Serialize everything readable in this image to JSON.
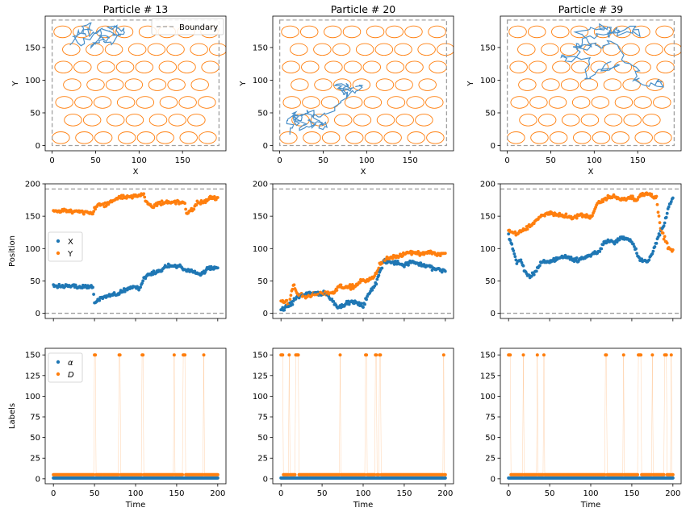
{
  "colors": {
    "blue": "#1f77b4",
    "orange": "#ff7f0e",
    "traj": "#4a90c9",
    "boundary": "#a0a0a0",
    "obstacle": "#ff7f0e"
  },
  "chart_data": [
    {
      "panel": "r0c0",
      "type": "scatter",
      "title": "Particle # 13",
      "xlabel": "X",
      "ylabel": "Y",
      "xlim": [
        -8,
        200
      ],
      "ylim": [
        -8,
        198
      ],
      "xticks": [
        0,
        50,
        100,
        150
      ],
      "yticks": [
        0,
        50,
        100,
        150
      ],
      "boundary": 192,
      "legend": {
        "label": "Boundary",
        "loc": "upper right"
      },
      "trajectory": [
        [
          20,
          150
        ],
        [
          30,
          175
        ],
        [
          40,
          168
        ],
        [
          35,
          182
        ],
        [
          45,
          185
        ],
        [
          42,
          170
        ],
        [
          55,
          175
        ],
        [
          60,
          162
        ],
        [
          50,
          158
        ],
        [
          45,
          150
        ],
        [
          55,
          165
        ],
        [
          65,
          170
        ],
        [
          60,
          155
        ],
        [
          70,
          160
        ],
        [
          75,
          178
        ],
        [
          65,
          183
        ],
        [
          80,
          180
        ],
        [
          85,
          175
        ],
        [
          75,
          168
        ],
        [
          70,
          172
        ],
        [
          55,
          180
        ],
        [
          40,
          160
        ],
        [
          30,
          155
        ],
        [
          25,
          165
        ],
        [
          35,
          170
        ],
        [
          48,
          178
        ]
      ]
    },
    {
      "panel": "r0c1",
      "type": "scatter",
      "title": "Particle # 20",
      "xlabel": "X",
      "ylabel": "Y",
      "xlim": [
        -8,
        200
      ],
      "ylim": [
        -8,
        198
      ],
      "xticks": [
        0,
        50,
        100,
        150
      ],
      "yticks": [
        0,
        50,
        100,
        150
      ],
      "boundary": 192,
      "trajectory": [
        [
          10,
          15
        ],
        [
          15,
          30
        ],
        [
          5,
          40
        ],
        [
          20,
          45
        ],
        [
          12,
          50
        ],
        [
          30,
          35
        ],
        [
          25,
          25
        ],
        [
          40,
          30
        ],
        [
          35,
          40
        ],
        [
          50,
          35
        ],
        [
          45,
          28
        ],
        [
          55,
          32
        ],
        [
          40,
          45
        ],
        [
          30,
          55
        ],
        [
          25,
          42
        ],
        [
          20,
          30
        ],
        [
          15,
          45
        ],
        [
          35,
          48
        ],
        [
          45,
          42
        ],
        [
          60,
          55
        ],
        [
          70,
          65
        ],
        [
          75,
          80
        ],
        [
          65,
          92
        ],
        [
          80,
          95
        ],
        [
          75,
          85
        ],
        [
          85,
          88
        ],
        [
          70,
          85
        ],
        [
          80,
          78
        ],
        [
          90,
          85
        ],
        [
          95,
          90
        ],
        [
          85,
          92
        ]
      ]
    },
    {
      "panel": "r0c2",
      "type": "scatter",
      "title": "Particle # 39",
      "xlabel": "X",
      "ylabel": "Y",
      "xlim": [
        -8,
        200
      ],
      "ylim": [
        -8,
        198
      ],
      "xticks": [
        0,
        50,
        100,
        150
      ],
      "yticks": [
        0,
        50,
        100,
        150
      ],
      "boundary": 192,
      "trajectory": [
        [
          120,
          130
        ],
        [
          110,
          115
        ],
        [
          130,
          125
        ],
        [
          100,
          110
        ],
        [
          90,
          100
        ],
        [
          95,
          130
        ],
        [
          75,
          135
        ],
        [
          60,
          140
        ],
        [
          70,
          130
        ],
        [
          85,
          140
        ],
        [
          80,
          155
        ],
        [
          95,
          150
        ],
        [
          90,
          165
        ],
        [
          80,
          175
        ],
        [
          100,
          180
        ],
        [
          110,
          175
        ],
        [
          105,
          185
        ],
        [
          120,
          178
        ],
        [
          115,
          168
        ],
        [
          130,
          180
        ],
        [
          125,
          170
        ],
        [
          140,
          175
        ],
        [
          150,
          170
        ],
        [
          145,
          182
        ],
        [
          110,
          170
        ],
        [
          95,
          165
        ],
        [
          80,
          150
        ],
        [
          90,
          145
        ],
        [
          100,
          160
        ],
        [
          110,
          150
        ],
        [
          120,
          160
        ],
        [
          135,
          130
        ],
        [
          150,
          120
        ],
        [
          145,
          100
        ],
        [
          160,
          95
        ],
        [
          175,
          100
        ],
        [
          180,
          90
        ],
        [
          165,
          92
        ]
      ]
    },
    {
      "panel": "r1c0",
      "type": "scatter",
      "ylabel": "Position",
      "xlim": [
        -10,
        210
      ],
      "ylim": [
        -8,
        200
      ],
      "yticks": [
        0,
        50,
        100,
        150,
        200
      ],
      "boundary": 192,
      "legend": {
        "loc": "center left",
        "labels": [
          "X",
          "Y"
        ]
      },
      "x_knots": [
        [
          0,
          42
        ],
        [
          20,
          42
        ],
        [
          40,
          40
        ],
        [
          48,
          42
        ],
        [
          50,
          15
        ],
        [
          60,
          25
        ],
        [
          80,
          30
        ],
        [
          90,
          38
        ],
        [
          100,
          40
        ],
        [
          105,
          38
        ],
        [
          110,
          55
        ],
        [
          120,
          62
        ],
        [
          130,
          65
        ],
        [
          140,
          75
        ],
        [
          150,
          72
        ],
        [
          155,
          72
        ],
        [
          160,
          68
        ],
        [
          170,
          65
        ],
        [
          180,
          60
        ],
        [
          190,
          72
        ],
        [
          200,
          68
        ]
      ],
      "y_knots": [
        [
          0,
          158
        ],
        [
          20,
          158
        ],
        [
          40,
          155
        ],
        [
          48,
          155
        ],
        [
          50,
          160
        ],
        [
          55,
          170
        ],
        [
          60,
          165
        ],
        [
          70,
          172
        ],
        [
          80,
          180
        ],
        [
          90,
          178
        ],
        [
          100,
          182
        ],
        [
          110,
          185
        ],
        [
          112,
          172
        ],
        [
          120,
          165
        ],
        [
          130,
          170
        ],
        [
          140,
          172
        ],
        [
          150,
          172
        ],
        [
          160,
          170
        ],
        [
          162,
          155
        ],
        [
          170,
          160
        ],
        [
          175,
          170
        ],
        [
          185,
          172
        ],
        [
          190,
          178
        ],
        [
          200,
          178
        ]
      ]
    },
    {
      "panel": "r1c1",
      "type": "scatter",
      "xlim": [
        -10,
        210
      ],
      "ylim": [
        -8,
        200
      ],
      "yticks": [
        0,
        50,
        100,
        150,
        200
      ],
      "boundary": 192,
      "x_knots": [
        [
          0,
          5
        ],
        [
          10,
          12
        ],
        [
          20,
          25
        ],
        [
          30,
          30
        ],
        [
          40,
          32
        ],
        [
          55,
          30
        ],
        [
          60,
          22
        ],
        [
          70,
          10
        ],
        [
          85,
          18
        ],
        [
          100,
          12
        ],
        [
          105,
          25
        ],
        [
          115,
          45
        ],
        [
          125,
          80
        ],
        [
          140,
          78
        ],
        [
          150,
          75
        ],
        [
          160,
          80
        ],
        [
          170,
          75
        ],
        [
          180,
          72
        ],
        [
          190,
          68
        ],
        [
          200,
          66
        ]
      ],
      "y_knots": [
        [
          0,
          20
        ],
        [
          10,
          15
        ],
        [
          15,
          45
        ],
        [
          20,
          30
        ],
        [
          30,
          25
        ],
        [
          40,
          28
        ],
        [
          55,
          32
        ],
        [
          65,
          32
        ],
        [
          70,
          42
        ],
        [
          80,
          40
        ],
        [
          90,
          42
        ],
        [
          100,
          52
        ],
        [
          105,
          50
        ],
        [
          115,
          60
        ],
        [
          120,
          75
        ],
        [
          130,
          85
        ],
        [
          140,
          88
        ],
        [
          150,
          92
        ],
        [
          160,
          95
        ],
        [
          170,
          92
        ],
        [
          180,
          95
        ],
        [
          190,
          90
        ],
        [
          200,
          92
        ]
      ]
    },
    {
      "panel": "r1c2",
      "type": "scatter",
      "xlim": [
        -10,
        210
      ],
      "ylim": [
        -8,
        200
      ],
      "yticks": [
        0,
        50,
        100,
        150,
        200
      ],
      "boundary": 192,
      "x_knots": [
        [
          0,
          120
        ],
        [
          5,
          100
        ],
        [
          10,
          80
        ],
        [
          15,
          82
        ],
        [
          20,
          65
        ],
        [
          25,
          55
        ],
        [
          30,
          60
        ],
        [
          40,
          78
        ],
        [
          50,
          80
        ],
        [
          60,
          85
        ],
        [
          70,
          88
        ],
        [
          80,
          82
        ],
        [
          90,
          85
        ],
        [
          100,
          90
        ],
        [
          110,
          95
        ],
        [
          115,
          108
        ],
        [
          120,
          112
        ],
        [
          130,
          110
        ],
        [
          140,
          118
        ],
        [
          150,
          112
        ],
        [
          160,
          82
        ],
        [
          170,
          80
        ],
        [
          180,
          110
        ],
        [
          190,
          140
        ],
        [
          195,
          165
        ],
        [
          200,
          178
        ]
      ],
      "y_knots": [
        [
          0,
          130
        ],
        [
          5,
          125
        ],
        [
          10,
          122
        ],
        [
          20,
          130
        ],
        [
          30,
          140
        ],
        [
          40,
          150
        ],
        [
          50,
          155
        ],
        [
          60,
          152
        ],
        [
          70,
          150
        ],
        [
          80,
          148
        ],
        [
          90,
          152
        ],
        [
          100,
          148
        ],
        [
          105,
          160
        ],
        [
          110,
          172
        ],
        [
          120,
          178
        ],
        [
          130,
          180
        ],
        [
          140,
          175
        ],
        [
          150,
          180
        ],
        [
          155,
          175
        ],
        [
          160,
          182
        ],
        [
          170,
          185
        ],
        [
          180,
          178
        ],
        [
          185,
          130
        ],
        [
          190,
          115
        ],
        [
          195,
          100
        ],
        [
          200,
          95
        ]
      ]
    },
    {
      "panel": "r2c0",
      "type": "scatter",
      "ylabel": "Labels",
      "xlabel": "Time",
      "xlim": [
        -10,
        210
      ],
      "ylim": [
        -6,
        158
      ],
      "xticks": [
        0,
        50,
        100,
        150,
        200
      ],
      "yticks": [
        0,
        25,
        50,
        75,
        100,
        125,
        150
      ],
      "legend": {
        "loc": "upper left",
        "labels": [
          "α",
          "D"
        ]
      },
      "base_alpha": 1,
      "base_d": 5,
      "high": 150,
      "spikes": [
        50,
        51,
        80,
        81,
        108,
        109,
        147,
        158,
        159,
        160,
        183
      ]
    },
    {
      "panel": "r2c1",
      "type": "scatter",
      "xlabel": "Time",
      "xlim": [
        -10,
        210
      ],
      "ylim": [
        -6,
        158
      ],
      "xticks": [
        0,
        50,
        100,
        150,
        200
      ],
      "yticks": [
        0,
        25,
        50,
        75,
        100,
        125,
        150
      ],
      "base_alpha": 1,
      "base_d": 5,
      "high": 150,
      "spikes": [
        0,
        1,
        2,
        10,
        18,
        19,
        20,
        21,
        72,
        103,
        104,
        115,
        116,
        120,
        121,
        198
      ]
    },
    {
      "panel": "r2c2",
      "type": "scatter",
      "xlabel": "Time",
      "xlim": [
        -10,
        210
      ],
      "ylim": [
        -6,
        158
      ],
      "xticks": [
        0,
        50,
        100,
        150,
        200
      ],
      "yticks": [
        0,
        25,
        50,
        75,
        100,
        125,
        150
      ],
      "base_alpha": 1,
      "base_d": 5,
      "high": 150,
      "spikes": [
        0,
        1,
        2,
        18,
        35,
        43,
        118,
        119,
        140,
        158,
        159,
        160,
        161,
        175,
        190,
        191,
        192,
        198
      ]
    }
  ]
}
